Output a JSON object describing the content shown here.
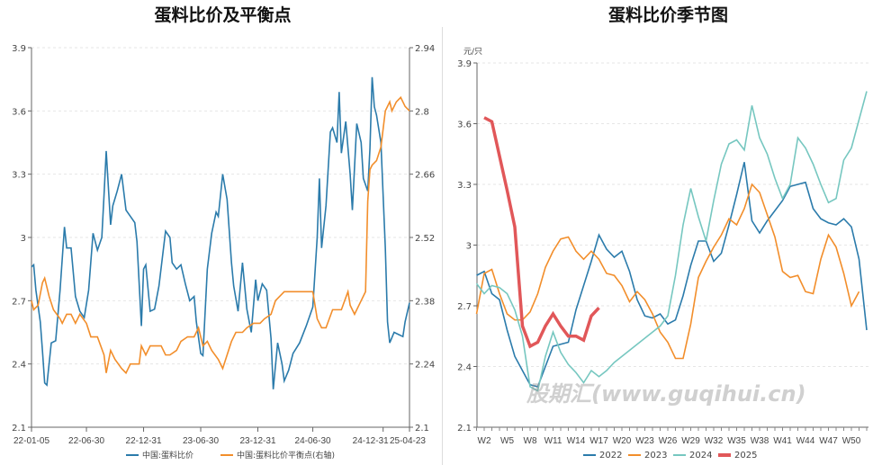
{
  "chart_data": [
    {
      "type": "line",
      "title": "蛋料比价及平衡点",
      "x_unit": "week index from 22-01-05",
      "x_tick_labels": [
        {
          "idx": 0,
          "label": "22-01-05"
        },
        {
          "idx": 25,
          "label": "22-06-30"
        },
        {
          "idx": 51,
          "label": "22-12-31"
        },
        {
          "idx": 77,
          "label": "23-06-30"
        },
        {
          "idx": 103,
          "label": "23-12-31"
        },
        {
          "idx": 128,
          "label": "24-06-30"
        },
        {
          "idx": 160,
          "label": "24-12-31"
        },
        {
          "idx": 172,
          "label": "25-04-23"
        }
      ],
      "x_range": [
        0,
        172
      ],
      "y_left": {
        "range": [
          2.1,
          3.9
        ],
        "ticks": [
          "3.9",
          "3.6",
          "3.3",
          "3",
          "2.7",
          "2.4",
          "2.1"
        ]
      },
      "y_right": {
        "range": [
          2.1,
          2.94
        ],
        "ticks": [
          "2.94",
          "2.8",
          "2.66",
          "2.52",
          "2.38",
          "2.24",
          "2.1"
        ]
      },
      "grid": true,
      "legend_position": "bottom",
      "series": [
        {
          "name": "中国:蛋料比价",
          "axis": "left",
          "color": "#2b7bab",
          "points": [
            [
              0,
              2.86
            ],
            [
              1,
              2.87
            ],
            [
              2,
              2.75
            ],
            [
              4,
              2.6
            ],
            [
              5,
              2.46
            ],
            [
              6,
              2.31
            ],
            [
              7,
              2.3
            ],
            [
              9,
              2.5
            ],
            [
              11,
              2.51
            ],
            [
              13,
              2.75
            ],
            [
              15,
              3.05
            ],
            [
              16,
              2.95
            ],
            [
              18,
              2.95
            ],
            [
              20,
              2.72
            ],
            [
              22,
              2.65
            ],
            [
              24,
              2.62
            ],
            [
              26,
              2.75
            ],
            [
              28,
              3.02
            ],
            [
              30,
              2.94
            ],
            [
              32,
              3.0
            ],
            [
              33,
              3.2
            ],
            [
              34,
              3.41
            ],
            [
              36,
              3.06
            ],
            [
              37,
              3.15
            ],
            [
              39,
              3.22
            ],
            [
              41,
              3.3
            ],
            [
              43,
              3.13
            ],
            [
              45,
              3.1
            ],
            [
              47,
              3.07
            ],
            [
              48,
              2.98
            ],
            [
              50,
              2.58
            ],
            [
              51,
              2.85
            ],
            [
              52,
              2.87
            ],
            [
              54,
              2.65
            ],
            [
              56,
              2.66
            ],
            [
              58,
              2.77
            ],
            [
              61,
              3.03
            ],
            [
              63,
              3.0
            ],
            [
              64,
              2.88
            ],
            [
              66,
              2.85
            ],
            [
              68,
              2.87
            ],
            [
              70,
              2.78
            ],
            [
              72,
              2.7
            ],
            [
              74,
              2.72
            ],
            [
              75,
              2.6
            ],
            [
              77,
              2.45
            ],
            [
              78,
              2.44
            ],
            [
              80,
              2.85
            ],
            [
              82,
              3.02
            ],
            [
              84,
              3.12
            ],
            [
              85,
              3.1
            ],
            [
              87,
              3.3
            ],
            [
              89,
              3.18
            ],
            [
              91,
              2.88
            ],
            [
              92,
              2.77
            ],
            [
              94,
              2.65
            ],
            [
              96,
              2.88
            ],
            [
              98,
              2.66
            ],
            [
              100,
              2.55
            ],
            [
              102,
              2.8
            ],
            [
              103,
              2.7
            ],
            [
              105,
              2.78
            ],
            [
              107,
              2.75
            ],
            [
              109,
              2.52
            ],
            [
              110,
              2.28
            ],
            [
              112,
              2.5
            ],
            [
              114,
              2.4
            ],
            [
              115,
              2.32
            ],
            [
              117,
              2.37
            ],
            [
              119,
              2.45
            ],
            [
              122,
              2.5
            ],
            [
              125,
              2.58
            ],
            [
              128,
              2.67
            ],
            [
              130,
              3.0
            ],
            [
              131,
              3.28
            ],
            [
              132,
              2.95
            ],
            [
              134,
              3.15
            ],
            [
              136,
              3.5
            ],
            [
              137,
              3.52
            ],
            [
              139,
              3.45
            ],
            [
              140,
              3.69
            ],
            [
              141,
              3.4
            ],
            [
              143,
              3.55
            ],
            [
              145,
              3.3
            ],
            [
              146,
              3.13
            ],
            [
              148,
              3.54
            ],
            [
              150,
              3.45
            ],
            [
              151,
              3.28
            ],
            [
              153,
              3.22
            ],
            [
              154,
              3.42
            ],
            [
              155,
              3.76
            ],
            [
              156,
              3.62
            ],
            [
              157,
              3.58
            ],
            [
              159,
              3.45
            ],
            [
              161,
              2.95
            ],
            [
              162,
              2.6
            ],
            [
              163,
              2.5
            ],
            [
              165,
              2.55
            ],
            [
              167,
              2.54
            ],
            [
              169,
              2.53
            ],
            [
              170,
              2.6
            ],
            [
              172,
              2.69
            ]
          ]
        },
        {
          "name": "中国:蛋料比价平衡点(右轴)",
          "axis": "right",
          "color": "#f28e2b",
          "points": [
            [
              0,
              2.38
            ],
            [
              1,
              2.36
            ],
            [
              3,
              2.37
            ],
            [
              5,
              2.42
            ],
            [
              6,
              2.43
            ],
            [
              8,
              2.39
            ],
            [
              10,
              2.36
            ],
            [
              13,
              2.34
            ],
            [
              14,
              2.33
            ],
            [
              16,
              2.35
            ],
            [
              18,
              2.35
            ],
            [
              20,
              2.33
            ],
            [
              22,
              2.35
            ],
            [
              25,
              2.33
            ],
            [
              27,
              2.3
            ],
            [
              30,
              2.3
            ],
            [
              33,
              2.26
            ],
            [
              34,
              2.22
            ],
            [
              36,
              2.27
            ],
            [
              38,
              2.25
            ],
            [
              41,
              2.23
            ],
            [
              43,
              2.22
            ],
            [
              45,
              2.24
            ],
            [
              47,
              2.24
            ],
            [
              49,
              2.24
            ],
            [
              50,
              2.28
            ],
            [
              52,
              2.26
            ],
            [
              54,
              2.28
            ],
            [
              57,
              2.28
            ],
            [
              59,
              2.28
            ],
            [
              61,
              2.26
            ],
            [
              63,
              2.26
            ],
            [
              66,
              2.27
            ],
            [
              68,
              2.29
            ],
            [
              71,
              2.3
            ],
            [
              74,
              2.3
            ],
            [
              76,
              2.32
            ],
            [
              78,
              2.28
            ],
            [
              80,
              2.29
            ],
            [
              82,
              2.27
            ],
            [
              85,
              2.25
            ],
            [
              87,
              2.23
            ],
            [
              89,
              2.26
            ],
            [
              91,
              2.29
            ],
            [
              93,
              2.31
            ],
            [
              96,
              2.31
            ],
            [
              98,
              2.32
            ],
            [
              101,
              2.33
            ],
            [
              104,
              2.33
            ],
            [
              106,
              2.34
            ],
            [
              109,
              2.35
            ],
            [
              111,
              2.38
            ],
            [
              113,
              2.39
            ],
            [
              115,
              2.4
            ],
            [
              117,
              2.4
            ],
            [
              119,
              2.4
            ],
            [
              122,
              2.4
            ],
            [
              125,
              2.4
            ],
            [
              128,
              2.4
            ],
            [
              130,
              2.34
            ],
            [
              132,
              2.32
            ],
            [
              134,
              2.32
            ],
            [
              137,
              2.36
            ],
            [
              139,
              2.36
            ],
            [
              141,
              2.36
            ],
            [
              144,
              2.4
            ],
            [
              145,
              2.37
            ],
            [
              147,
              2.35
            ],
            [
              150,
              2.38
            ],
            [
              152,
              2.4
            ],
            [
              153,
              2.6
            ],
            [
              154,
              2.67
            ],
            [
              155,
              2.68
            ],
            [
              157,
              2.69
            ],
            [
              159,
              2.72
            ],
            [
              161,
              2.8
            ],
            [
              163,
              2.82
            ],
            [
              164,
              2.8
            ],
            [
              166,
              2.82
            ],
            [
              168,
              2.83
            ],
            [
              170,
              2.81
            ],
            [
              172,
              2.8
            ]
          ]
        }
      ]
    },
    {
      "type": "line",
      "title": "蛋料比价季节图",
      "unit_label": "元/只",
      "x_range": [
        1,
        52
      ],
      "x_tick_labels": [
        "W2",
        "W5",
        "W8",
        "W11",
        "W14",
        "W17",
        "W20",
        "W23",
        "W26",
        "W29",
        "W32",
        "W35",
        "W38",
        "W41",
        "W44",
        "W47",
        "W50"
      ],
      "y": {
        "range": [
          2.1,
          3.9
        ],
        "ticks": [
          "3.9",
          "3.6",
          "3.3",
          "3",
          "2.7",
          "2.4",
          "2.1"
        ]
      },
      "grid": true,
      "legend_position": "bottom",
      "series": [
        {
          "name": "2022",
          "color": "#2b7bab",
          "values": [
            2.85,
            2.87,
            2.76,
            2.73,
            2.58,
            2.45,
            2.38,
            2.31,
            2.3,
            2.4,
            2.5,
            2.51,
            2.52,
            2.68,
            2.8,
            2.92,
            3.05,
            2.98,
            2.94,
            2.97,
            2.87,
            2.73,
            2.65,
            2.64,
            2.66,
            2.61,
            2.63,
            2.75,
            2.9,
            3.02,
            3.02,
            2.92,
            2.96,
            3.1,
            3.25,
            3.41,
            3.12,
            3.06,
            3.12,
            3.17,
            3.22,
            3.29,
            3.3,
            3.31,
            3.18,
            3.13,
            3.11,
            3.1,
            3.13,
            3.09,
            2.93,
            2.58
          ]
        },
        {
          "name": "2023",
          "color": "#f28e2b",
          "values": [
            2.66,
            2.86,
            2.88,
            2.76,
            2.66,
            2.63,
            2.63,
            2.67,
            2.76,
            2.89,
            2.97,
            3.03,
            3.04,
            2.97,
            2.93,
            2.97,
            2.93,
            2.86,
            2.85,
            2.8,
            2.72,
            2.77,
            2.73,
            2.66,
            2.57,
            2.52,
            2.44,
            2.44,
            2.61,
            2.84,
            2.92,
            2.99,
            3.05,
            3.13,
            3.1,
            3.18,
            3.3,
            3.26,
            3.15,
            3.04,
            2.87,
            2.84,
            2.85,
            2.77,
            2.76,
            2.93,
            3.05,
            2.99,
            2.86,
            2.7,
            2.77
          ]
        },
        {
          "name": "2024",
          "color": "#76c7c0",
          "values": [
            2.81,
            2.76,
            2.8,
            2.79,
            2.76,
            2.68,
            2.55,
            2.3,
            2.28,
            2.45,
            2.57,
            2.47,
            2.41,
            2.37,
            2.32,
            2.38,
            2.35,
            2.38,
            2.42,
            2.45,
            2.48,
            2.51,
            2.54,
            2.57,
            2.6,
            2.65,
            2.85,
            3.1,
            3.28,
            3.14,
            3.02,
            3.22,
            3.4,
            3.5,
            3.52,
            3.47,
            3.69,
            3.53,
            3.45,
            3.33,
            3.23,
            3.3,
            3.53,
            3.48,
            3.4,
            3.3,
            3.21,
            3.23,
            3.42,
            3.48,
            3.62,
            3.76
          ]
        },
        {
          "name": "2025",
          "color": "#e15759",
          "values": [
            null,
            3.63,
            3.61,
            3.44,
            3.27,
            3.09,
            2.6,
            2.5,
            2.52,
            2.6,
            2.66,
            2.6,
            2.55,
            2.55,
            2.53,
            2.65,
            2.69
          ]
        }
      ]
    }
  ],
  "watermark": "股期汇(www.guqihui.cn)"
}
